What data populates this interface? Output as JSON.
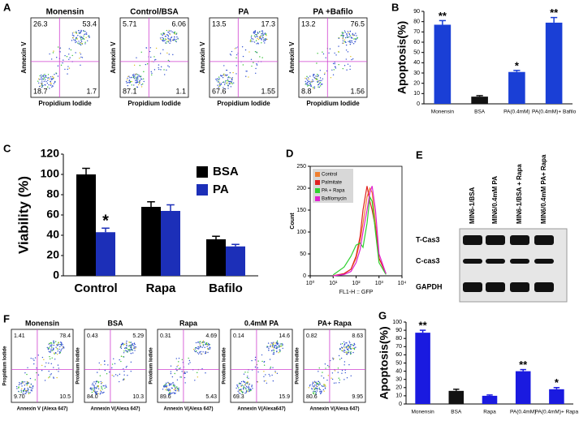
{
  "flow_a": {
    "panel": "A",
    "plots": [
      {
        "title": "Monensin",
        "quadrants": [
          "26.3",
          "53.4",
          "18.7",
          "1.7"
        ],
        "xlabel": "Propidium  Iodide",
        "ylabel": "Annexin  V"
      },
      {
        "title": "Control/BSA",
        "quadrants": [
          "5.71",
          "6.06",
          "87.1",
          "1.1"
        ],
        "xlabel": "Propidium  Iodide",
        "ylabel": "Annexin  V"
      },
      {
        "title": "PA",
        "quadrants": [
          "13.5",
          "17.3",
          "67.6",
          "1.55"
        ],
        "xlabel": "Propidium  Iodide",
        "ylabel": "Annexin  V"
      },
      {
        "title": "PA +Bafilo",
        "quadrants": [
          "13.2",
          "76.5",
          "8.8",
          "1.56"
        ],
        "xlabel": "Propidium  Iodide",
        "ylabel": "Annexin  V"
      }
    ]
  },
  "blot_e": {
    "panel": "E",
    "lanes": [
      "MIN6-1/BSA",
      "MIN6/0.4mM PA",
      "MIN6-1/BSA + Rapa",
      "MIN6/0.4mM PA+ Rapa"
    ],
    "rows": [
      "T-Cas3",
      "C-cas3",
      "GAPDH"
    ]
  },
  "flow_f": {
    "panel": "F",
    "plots": [
      {
        "title": "Monensin",
        "quadrants": [
          "1.41",
          "78.4",
          "9.70",
          "10.5"
        ],
        "xlabel": "Annexin V (Alexa 647)",
        "ylabel": "Propidium Iodide"
      },
      {
        "title": "BSA",
        "quadrants": [
          "0.43",
          "5.29",
          "84.0",
          "10.3"
        ],
        "xlabel": "Annexin V(Alexa 647)",
        "ylabel": "Proidium Iodide"
      },
      {
        "title": "Rapa",
        "quadrants": [
          "0.31",
          "4.69",
          "89.6",
          "5.43"
        ],
        "xlabel": "Annexin V(Alexa 647)",
        "ylabel": "Proidium Iodide"
      },
      {
        "title": "0.4mM PA",
        "quadrants": [
          "0.14",
          "14.6",
          "69.3",
          "15.9"
        ],
        "xlabel": "Annexin V(Alexa647)",
        "ylabel": "Proidium Iodide"
      },
      {
        "title": "PA+ Rapa",
        "quadrants": [
          "0.82",
          "8.63",
          "80.6",
          "9.95"
        ],
        "xlabel": "Annexin V(Alexa 647)",
        "ylabel": "Proidium Iodide"
      }
    ]
  },
  "chart_data": [
    {
      "type": "bar",
      "panel": "B",
      "ylabel": "Apoptosis(%)",
      "categories": [
        "Monensin",
        "BSA",
        "PA(0.4mM)",
        "PA(0.4mM)+ Bafilo"
      ],
      "values": [
        77,
        7,
        31,
        79
      ],
      "errors": [
        4,
        1,
        1.5,
        5
      ],
      "annotations": [
        "**",
        null,
        "*",
        "**"
      ],
      "colors": [
        "#1a3fd6",
        "#111111",
        "#1a3fd6",
        "#1a3fd6"
      ],
      "ylim": [
        0,
        90
      ],
      "yticks": [
        0,
        10,
        20,
        30,
        40,
        50,
        60,
        70,
        80,
        90
      ]
    },
    {
      "type": "bar",
      "panel": "C",
      "ylabel": "Viability (%)",
      "categories": [
        "Control",
        "Rapa",
        "Bafilo"
      ],
      "series": [
        {
          "name": "BSA",
          "color": "#000000",
          "values": [
            100,
            68,
            36
          ],
          "errors": [
            6,
            5,
            3
          ],
          "annotations": [
            null,
            null,
            null
          ]
        },
        {
          "name": "PA",
          "color": "#1c2fb8",
          "values": [
            43,
            64,
            29
          ],
          "errors": [
            4,
            6,
            2
          ],
          "annotations": [
            "*",
            null,
            null
          ]
        }
      ],
      "ylim": [
        0,
        120
      ],
      "yticks": [
        0,
        20,
        40,
        60,
        80,
        100,
        120
      ]
    },
    {
      "type": "line",
      "panel": "D",
      "xlabel": "FL1-H :: GFP",
      "ylabel": "Count",
      "xscale": "log",
      "x": [
        10,
        30,
        60,
        100,
        150,
        200,
        300,
        400,
        500,
        700,
        1000,
        2000
      ],
      "series": [
        {
          "name": "Control",
          "color": "#f08030",
          "values": [
            0,
            5,
            15,
            40,
            80,
            120,
            180,
            200,
            190,
            120,
            40,
            5
          ]
        },
        {
          "name": "Palmitate",
          "color": "#e02020",
          "values": [
            0,
            5,
            15,
            45,
            90,
            150,
            205,
            170,
            150,
            110,
            40,
            5
          ]
        },
        {
          "name": "PA + Rapa",
          "color": "#30d030",
          "values": [
            2,
            20,
            45,
            70,
            75,
            65,
            120,
            180,
            170,
            100,
            30,
            3
          ]
        },
        {
          "name": "Bafilomycin",
          "color": "#e020d0",
          "values": [
            0,
            3,
            10,
            30,
            60,
            100,
            150,
            190,
            205,
            150,
            50,
            5
          ]
        }
      ],
      "xlim": [
        1,
        10000
      ],
      "xticks": [
        {
          "value": 1,
          "label": "10⁰"
        },
        {
          "value": 10,
          "label": "10¹"
        },
        {
          "value": 100,
          "label": "10²"
        },
        {
          "value": 1000,
          "label": "10³"
        },
        {
          "value": 10000,
          "label": "10⁴"
        }
      ],
      "ylim": [
        0,
        250
      ],
      "yticks": [
        0,
        50,
        100,
        150,
        200,
        250
      ]
    },
    {
      "type": "bar",
      "panel": "G",
      "ylabel": "Apoptosis(%)",
      "categories": [
        "Monensin",
        "BSA",
        "Rapa",
        "PA(0.4mM)",
        "PA(0.4mM)+ Rapa"
      ],
      "values": [
        87,
        16,
        10,
        40,
        18
      ],
      "errors": [
        3,
        2,
        1,
        2,
        2
      ],
      "annotations": [
        "**",
        null,
        null,
        "**",
        "*"
      ],
      "colors": [
        "#1a1ae0",
        "#111111",
        "#1a1ae0",
        "#1a1ae0",
        "#1a1ae0"
      ],
      "ylim": [
        0,
        100
      ],
      "yticks": [
        0,
        10,
        20,
        30,
        40,
        50,
        60,
        70,
        80,
        90,
        100
      ]
    }
  ]
}
